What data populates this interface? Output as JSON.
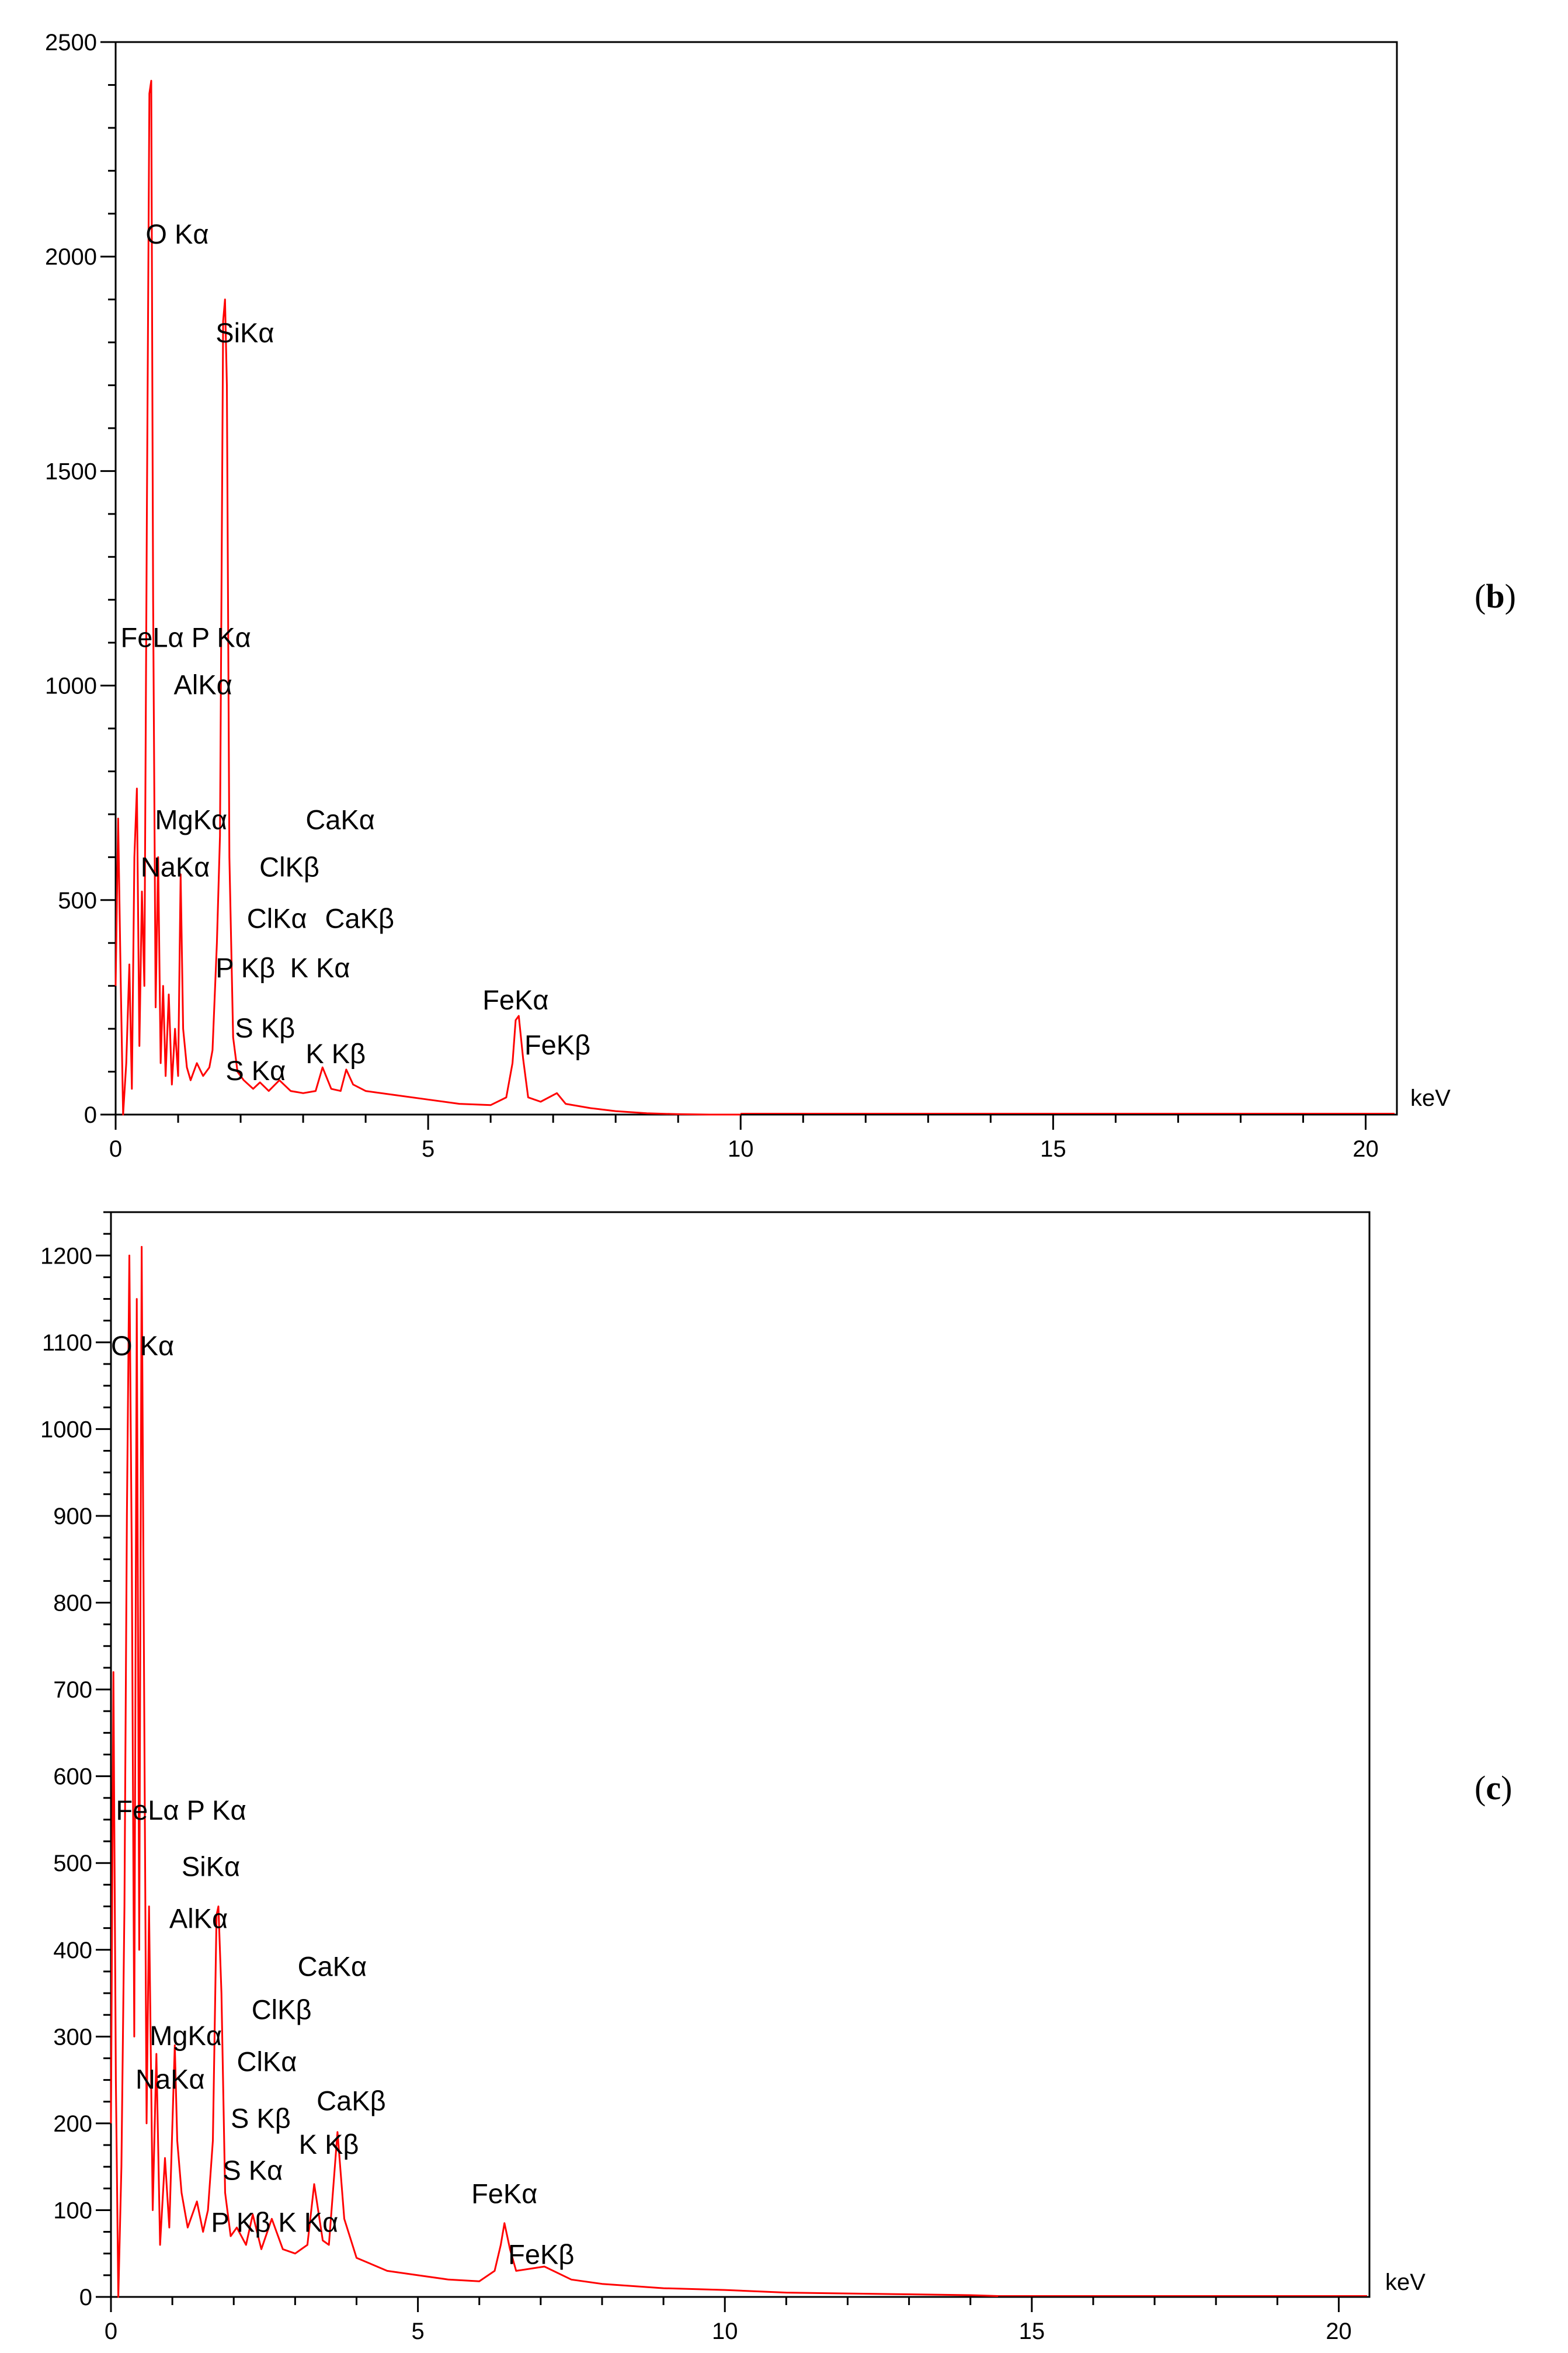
{
  "chart_data": [
    {
      "type": "line",
      "panel_label": "b",
      "xlabel": "keV",
      "ylabel": "",
      "xlim": [
        0,
        20.5
      ],
      "ylim": [
        0,
        2500
      ],
      "x_ticks": [
        0,
        5,
        10,
        15,
        20
      ],
      "y_ticks": [
        0,
        500,
        1000,
        1500,
        2000,
        2500
      ],
      "grid": false,
      "series": [
        {
          "color": "#ff0000",
          "points": [
            [
              0.0,
              300
            ],
            [
              0.04,
              690
            ],
            [
              0.08,
              320
            ],
            [
              0.12,
              0
            ],
            [
              0.17,
              120
            ],
            [
              0.22,
              350
            ],
            [
              0.26,
              60
            ],
            [
              0.3,
              600
            ],
            [
              0.34,
              760
            ],
            [
              0.38,
              160
            ],
            [
              0.42,
              520
            ],
            [
              0.46,
              300
            ],
            [
              0.5,
              1400
            ],
            [
              0.54,
              2380
            ],
            [
              0.57,
              2410
            ],
            [
              0.6,
              1200
            ],
            [
              0.64,
              250
            ],
            [
              0.68,
              600
            ],
            [
              0.72,
              120
            ],
            [
              0.76,
              300
            ],
            [
              0.8,
              90
            ],
            [
              0.85,
              280
            ],
            [
              0.9,
              70
            ],
            [
              0.95,
              200
            ],
            [
              1.0,
              90
            ],
            [
              1.04,
              560
            ],
            [
              1.08,
              200
            ],
            [
              1.14,
              110
            ],
            [
              1.2,
              80
            ],
            [
              1.3,
              120
            ],
            [
              1.4,
              90
            ],
            [
              1.5,
              110
            ],
            [
              1.55,
              150
            ],
            [
              1.62,
              400
            ],
            [
              1.67,
              650
            ],
            [
              1.72,
              1850
            ],
            [
              1.75,
              1900
            ],
            [
              1.78,
              1700
            ],
            [
              1.82,
              600
            ],
            [
              1.88,
              180
            ],
            [
              1.95,
              100
            ],
            [
              2.05,
              80
            ],
            [
              2.2,
              60
            ],
            [
              2.31,
              75
            ],
            [
              2.45,
              55
            ],
            [
              2.62,
              80
            ],
            [
              2.8,
              55
            ],
            [
              3.0,
              50
            ],
            [
              3.2,
              55
            ],
            [
              3.31,
              110
            ],
            [
              3.45,
              60
            ],
            [
              3.6,
              55
            ],
            [
              3.69,
              105
            ],
            [
              3.8,
              70
            ],
            [
              4.0,
              55
            ],
            [
              4.5,
              45
            ],
            [
              5.0,
              35
            ],
            [
              5.5,
              25
            ],
            [
              6.0,
              22
            ],
            [
              6.25,
              40
            ],
            [
              6.35,
              120
            ],
            [
              6.4,
              220
            ],
            [
              6.45,
              230
            ],
            [
              6.52,
              130
            ],
            [
              6.6,
              40
            ],
            [
              6.8,
              30
            ],
            [
              7.06,
              50
            ],
            [
              7.2,
              25
            ],
            [
              7.6,
              15
            ],
            [
              8.0,
              8
            ],
            [
              8.5,
              3
            ],
            [
              9.0,
              1
            ],
            [
              9.5,
              0
            ],
            [
              10.0,
              0
            ]
          ]
        }
      ],
      "annotations": [
        {
          "text": "O Kα",
          "x": 0.48,
          "y": 2030
        },
        {
          "text": "SiKα",
          "x": 1.6,
          "y": 1800
        },
        {
          "text": "FeLα P Kα",
          "x": 0.08,
          "y": 1090
        },
        {
          "text": "AlKα",
          "x": 0.93,
          "y": 980
        },
        {
          "text": "MgKα",
          "x": 0.63,
          "y": 665
        },
        {
          "text": "CaKα",
          "x": 3.04,
          "y": 665
        },
        {
          "text": "NaKα",
          "x": 0.4,
          "y": 555
        },
        {
          "text": "ClKβ",
          "x": 2.3,
          "y": 555
        },
        {
          "text": "ClKα",
          "x": 2.1,
          "y": 435
        },
        {
          "text": "CaKβ",
          "x": 3.35,
          "y": 435
        },
        {
          "text": "P Kβ",
          "x": 1.6,
          "y": 320
        },
        {
          "text": "K Kα",
          "x": 2.79,
          "y": 320
        },
        {
          "text": "FeKα",
          "x": 5.87,
          "y": 245
        },
        {
          "text": "S Kβ",
          "x": 1.91,
          "y": 180
        },
        {
          "text": "K Kβ",
          "x": 3.04,
          "y": 120
        },
        {
          "text": "S Kα",
          "x": 1.76,
          "y": 80
        },
        {
          "text": "FeKβ",
          "x": 6.54,
          "y": 140
        }
      ]
    },
    {
      "type": "line",
      "panel_label": "c",
      "xlabel": "keV",
      "ylabel": "",
      "xlim": [
        0,
        20.5
      ],
      "ylim": [
        0,
        1250
      ],
      "x_ticks": [
        0,
        5,
        10,
        15,
        20
      ],
      "y_ticks": [
        0,
        100,
        200,
        300,
        400,
        500,
        600,
        700,
        800,
        900,
        1000,
        1100,
        1200
      ],
      "grid": false,
      "series": [
        {
          "color": "#ff0000",
          "points": [
            [
              0.0,
              200
            ],
            [
              0.04,
              720
            ],
            [
              0.08,
              250
            ],
            [
              0.12,
              0
            ],
            [
              0.17,
              150
            ],
            [
              0.22,
              450
            ],
            [
              0.26,
              900
            ],
            [
              0.3,
              1200
            ],
            [
              0.34,
              850
            ],
            [
              0.38,
              300
            ],
            [
              0.42,
              1150
            ],
            [
              0.46,
              400
            ],
            [
              0.5,
              1210
            ],
            [
              0.54,
              700
            ],
            [
              0.58,
              200
            ],
            [
              0.62,
              450
            ],
            [
              0.68,
              100
            ],
            [
              0.74,
              280
            ],
            [
              0.8,
              60
            ],
            [
              0.88,
              160
            ],
            [
              0.95,
              80
            ],
            [
              1.04,
              290
            ],
            [
              1.08,
              180
            ],
            [
              1.15,
              120
            ],
            [
              1.25,
              80
            ],
            [
              1.4,
              110
            ],
            [
              1.5,
              75
            ],
            [
              1.58,
              100
            ],
            [
              1.66,
              180
            ],
            [
              1.72,
              440
            ],
            [
              1.75,
              450
            ],
            [
              1.8,
              350
            ],
            [
              1.86,
              120
            ],
            [
              1.95,
              70
            ],
            [
              2.05,
              80
            ],
            [
              2.2,
              60
            ],
            [
              2.31,
              95
            ],
            [
              2.45,
              55
            ],
            [
              2.62,
              90
            ],
            [
              2.8,
              55
            ],
            [
              3.0,
              50
            ],
            [
              3.2,
              60
            ],
            [
              3.31,
              130
            ],
            [
              3.45,
              65
            ],
            [
              3.55,
              60
            ],
            [
              3.69,
              190
            ],
            [
              3.8,
              90
            ],
            [
              4.0,
              45
            ],
            [
              4.5,
              30
            ],
            [
              5.0,
              25
            ],
            [
              5.5,
              20
            ],
            [
              6.0,
              18
            ],
            [
              6.25,
              30
            ],
            [
              6.35,
              60
            ],
            [
              6.41,
              85
            ],
            [
              6.5,
              55
            ],
            [
              6.6,
              30
            ],
            [
              7.06,
              35
            ],
            [
              7.5,
              20
            ],
            [
              8.0,
              15
            ],
            [
              9.0,
              10
            ],
            [
              10.0,
              8
            ],
            [
              11.0,
              5
            ],
            [
              12.0,
              4
            ],
            [
              13.0,
              3
            ],
            [
              14.0,
              2
            ],
            [
              14.45,
              1
            ]
          ]
        }
      ],
      "annotations": [
        {
          "text": "O Kα",
          "x": 0.0,
          "y": 1085
        },
        {
          "text": "FeLα P Kα",
          "x": 0.08,
          "y": 550
        },
        {
          "text": "SiKα",
          "x": 1.15,
          "y": 485
        },
        {
          "text": "AlKα",
          "x": 0.95,
          "y": 425
        },
        {
          "text": "CaKα",
          "x": 3.04,
          "y": 370
        },
        {
          "text": "ClKβ",
          "x": 2.29,
          "y": 320
        },
        {
          "text": "MgKα",
          "x": 0.63,
          "y": 290
        },
        {
          "text": "ClKα",
          "x": 2.05,
          "y": 260
        },
        {
          "text": "NaKα",
          "x": 0.4,
          "y": 240
        },
        {
          "text": "CaKβ",
          "x": 3.35,
          "y": 215
        },
        {
          "text": "S Kβ",
          "x": 1.95,
          "y": 195
        },
        {
          "text": "K Kβ",
          "x": 3.06,
          "y": 165
        },
        {
          "text": "S Kα",
          "x": 1.82,
          "y": 135
        },
        {
          "text": "P Kβ K Kα",
          "x": 1.63,
          "y": 75
        },
        {
          "text": "FeKα",
          "x": 5.87,
          "y": 108
        },
        {
          "text": "FeKβ",
          "x": 6.47,
          "y": 38
        }
      ]
    }
  ]
}
